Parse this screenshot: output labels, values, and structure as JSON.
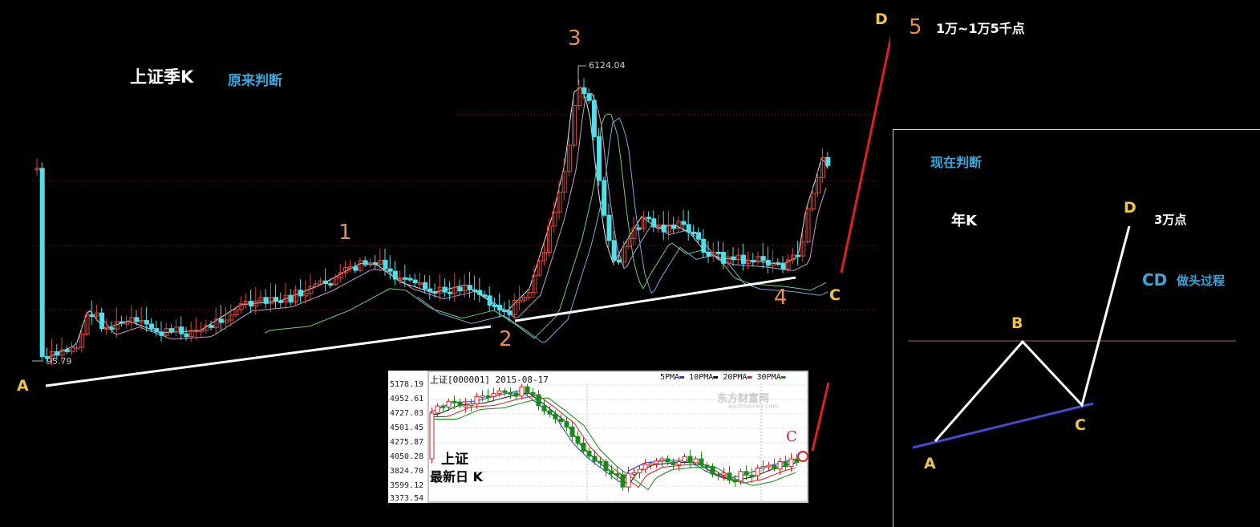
{
  "main_chart": {
    "title": "上证季K",
    "subtitle": "原来判断",
    "low_label": "95.79",
    "high_label": "6124.04",
    "wave_labels": [
      "1",
      "2",
      "3",
      "4",
      "5"
    ],
    "point_labels": [
      "A",
      "C",
      "D"
    ],
    "target_text": "1万~1万5千点"
  },
  "inset": {
    "header": "上证[000001] 2015-08-17",
    "legend": [
      "5PMA",
      "10PMA",
      "20PMA",
      "30PMA"
    ],
    "watermark": "东方财富网",
    "watermark_sub": "eastmoney.com",
    "yticks": [
      "5178.19",
      "4952.61",
      "4727.03",
      "4501.45",
      "4275.87",
      "4050.28",
      "3824.70",
      "3599.12",
      "3373.54"
    ],
    "caption_line1": "上证",
    "caption_line2": "最新日 K",
    "c_label": "C"
  },
  "panel": {
    "title": "现在判断",
    "chart_label": "年K",
    "target_text": "3万点",
    "cd_label": "CD",
    "cd_text": "做头过程",
    "points": [
      "A",
      "B",
      "C",
      "D"
    ]
  },
  "colors": {
    "up": "#d9493a",
    "down": "#52e0e8",
    "orange": "#e8904a",
    "yellow": "#f0c34a",
    "blue": "#39a8e0",
    "red_line": "#e02020"
  },
  "chart_data": [
    {
      "type": "candlestick",
      "title": "上证季K",
      "annotations": [
        {
          "label": "95.79",
          "kind": "low"
        },
        {
          "label": "6124.04",
          "kind": "high"
        }
      ]
    },
    {
      "type": "candlestick",
      "title": "上证[000001] 2015-08-17",
      "yticks": [
        5178.19,
        4952.61,
        4727.03,
        4501.45,
        4275.87,
        4050.28,
        3824.7,
        3599.12,
        3373.54
      ],
      "series": [
        {
          "name": "5PMA"
        },
        {
          "name": "10PMA"
        },
        {
          "name": "20PMA"
        },
        {
          "name": "30PMA"
        }
      ]
    }
  ]
}
